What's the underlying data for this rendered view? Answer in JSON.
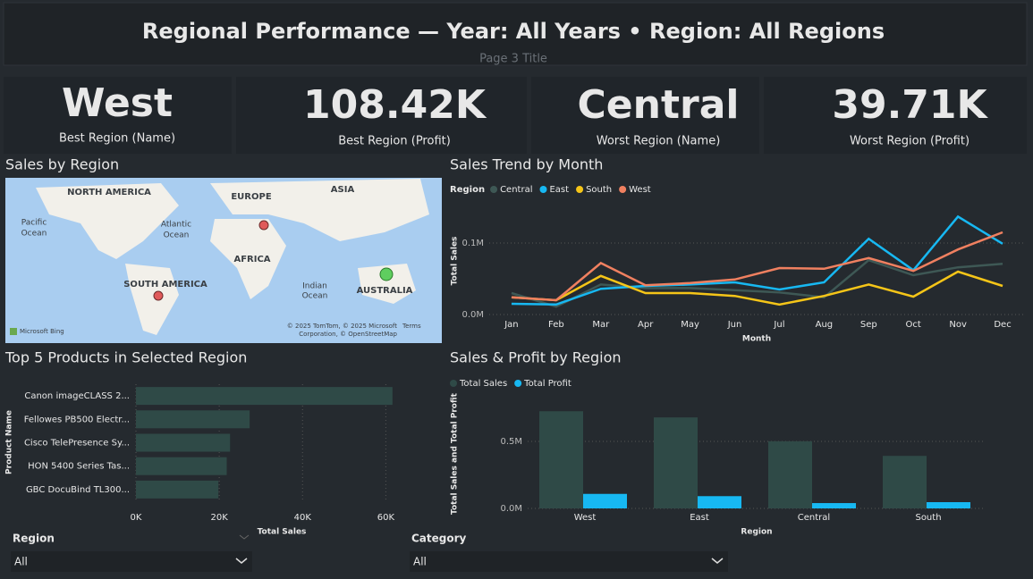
{
  "header": {
    "title": "Regional Performance — Year: All Years • Region: All Regions",
    "subtitle": "Page 3 Title"
  },
  "kpis": [
    {
      "value": "West",
      "label": "Best Region (Name)"
    },
    {
      "value": "108.42K",
      "label": "Best Region (Profit)"
    },
    {
      "value": "Central",
      "label": "Worst Region (Name)"
    },
    {
      "value": "39.71K",
      "label": "Worst Region (Profit)"
    }
  ],
  "map": {
    "title": "Sales by Region",
    "labels": [
      "NORTH AMERICA",
      "EUROPE",
      "ASIA",
      "Pacific",
      "Ocean",
      "Atlantic",
      "Ocean",
      "AFRICA",
      "Indian",
      "Ocean",
      "SOUTH AMERICA",
      "AUSTRALIA"
    ],
    "attribution": [
      "© 2025 TomTom, © 2025 Microsoft",
      "Corporation, © OpenStreetMap",
      "Terms"
    ],
    "logo": "Microsoft Bing"
  },
  "slicers": [
    {
      "title": "Region",
      "value": "All"
    },
    {
      "title": "Category",
      "value": "All"
    }
  ],
  "chart_data": [
    {
      "type": "line",
      "title": "Sales Trend by Month",
      "legend_title": "Region",
      "x_label": "Month",
      "y_label": "Total Sales",
      "categories": [
        "Jan",
        "Feb",
        "Mar",
        "Apr",
        "May",
        "Jun",
        "Jul",
        "Aug",
        "Sep",
        "Oct",
        "Nov",
        "Dec"
      ],
      "series": [
        {
          "name": "Central",
          "color": "#3e5855",
          "values": [
            30000,
            11000,
            42000,
            37000,
            37000,
            34000,
            31000,
            24000,
            76000,
            55000,
            66000,
            71000
          ]
        },
        {
          "name": "East",
          "color": "#17b8f2",
          "values": [
            15000,
            14000,
            36000,
            40000,
            42000,
            45000,
            35000,
            45000,
            106000,
            62000,
            137000,
            99000
          ]
        },
        {
          "name": "South",
          "color": "#f5c518",
          "values": [
            24000,
            20000,
            54000,
            30000,
            30000,
            26000,
            14000,
            26000,
            42000,
            25000,
            60000,
            40000
          ]
        },
        {
          "name": "West",
          "color": "#f08060",
          "values": [
            24000,
            20000,
            72000,
            41000,
            44000,
            49000,
            65000,
            64000,
            79000,
            61000,
            91000,
            115000
          ]
        }
      ],
      "ylim": [
        0,
        160000
      ],
      "yticks": [
        {
          "value": 0,
          "label": "0.0M"
        },
        {
          "value": 100000,
          "label": "0.1M"
        }
      ],
      "grid": true
    },
    {
      "type": "bar",
      "orientation": "horizontal",
      "title": "Top 5 Products in Selected Region",
      "x_label": "Total Sales",
      "y_label": "Product Name",
      "categories": [
        "Canon imageCLASS 2...",
        "Fellowes PB500 Electr...",
        "Cisco TelePresence Sy...",
        "HON 5400 Series Tas...",
        "GBC DocuBind TL300..."
      ],
      "values": [
        61600,
        27300,
        22600,
        21800,
        19800
      ],
      "color": "#2f4a47",
      "xlim": [
        0,
        64000
      ],
      "xticks": [
        {
          "value": 0,
          "label": "0K"
        },
        {
          "value": 20000,
          "label": "20K"
        },
        {
          "value": 40000,
          "label": "40K"
        },
        {
          "value": 60000,
          "label": "60K"
        }
      ],
      "grid": true
    },
    {
      "type": "bar",
      "orientation": "vertical",
      "title": "Sales & Profit by Region",
      "x_label": "Region",
      "y_label": "Total Sales and Total Profit",
      "categories": [
        "West",
        "East",
        "Central",
        "South"
      ],
      "series": [
        {
          "name": "Total Sales",
          "color": "#2f4a47",
          "values": [
            725000,
            679000,
            501000,
            392000
          ]
        },
        {
          "name": "Total Profit",
          "color": "#17b8f2",
          "values": [
            108420,
            91500,
            39710,
            46700
          ]
        }
      ],
      "ylim": [
        0,
        800000
      ],
      "yticks": [
        {
          "value": 0,
          "label": "0.0M"
        },
        {
          "value": 500000,
          "label": "0.5M"
        }
      ],
      "grid": true
    }
  ]
}
